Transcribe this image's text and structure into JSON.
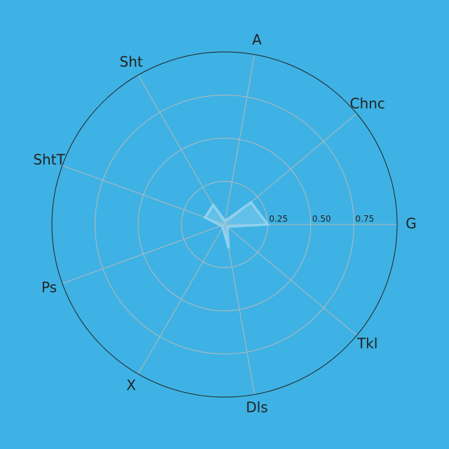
{
  "colors": {
    "background": "#3eb2e4",
    "grid": "#b9b9b9",
    "outer_ring": "#222222",
    "series_fill": "#8fd0ee",
    "series_stroke": "#8fd0ee",
    "text": "#222222"
  },
  "chart_data": {
    "type": "radar",
    "title": "",
    "axes": [
      "G",
      "Chnc",
      "A",
      "Sht",
      "ShtT",
      "Ps",
      "X",
      "Dls",
      "Tkl"
    ],
    "axes_angle_step_deg": 40,
    "start_axis_direction": "right",
    "rlim": [
      0,
      1
    ],
    "radial_ticks": [
      0.25,
      0.5,
      0.75
    ],
    "radial_tick_labels": [
      "0.25",
      "0.50",
      "0.75"
    ],
    "grid": true,
    "series": [
      {
        "values": [
          0.25,
          0.2,
          0.02,
          0.13,
          0.12,
          0.02,
          0.02,
          0.14,
          0.02
        ]
      }
    ]
  }
}
